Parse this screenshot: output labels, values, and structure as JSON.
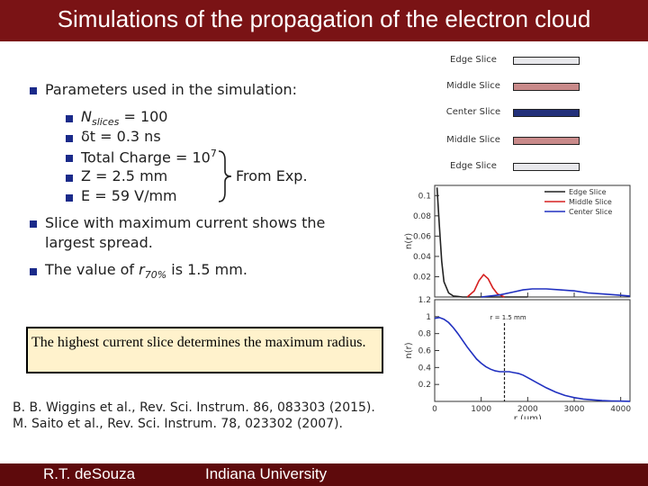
{
  "title": "Simulations of the propagation of the electron cloud",
  "bullets": {
    "main1": "Parameters used in the simulation:",
    "sub": [
      {
        "text": "N",
        "sub": "slices",
        "rest": " = 100"
      },
      {
        "text": "δt = 0.3 ns"
      },
      {
        "text": "Total Charge = 10",
        "sup": "7"
      },
      {
        "text": "Z = 2.5 mm"
      },
      {
        "text": "E = 59 V/mm"
      }
    ],
    "brace_label": "From Exp.",
    "main2_line1": "Slice with maximum current shows the",
    "main2_line2": "largest spread.",
    "main3_pre": "The value of ",
    "main3_var": "r",
    "main3_sub": "70%",
    "main3_post": " is 1.5 mm."
  },
  "callout": "The highest current slice determines the maximum radius.",
  "references": [
    "B. B. Wiggins et al., Rev. Sci. Instrum. 86, 083303 (2015).",
    "M. Saito et al., Rev. Sci. Instrum. 78, 023302 (2007)."
  ],
  "footer": {
    "author": "R.T. deSouza",
    "institution": "Indiana University"
  },
  "slice_legend": [
    {
      "label": "Edge Slice",
      "color": "#e8e8ec"
    },
    {
      "label": "Middle Slice",
      "color": "#c98a8a"
    },
    {
      "label": "Center Slice",
      "color": "#23307a"
    },
    {
      "label": "Middle Slice",
      "color": "#c98a8a"
    },
    {
      "label": "Edge Slice",
      "color": "#e8e8ec"
    }
  ],
  "colors": {
    "title_bar": "#7a1315",
    "footer_bar": "#5e0a0c",
    "bullet": "#1a2a8a",
    "edge": "#222222",
    "middle": "#d62020",
    "center": "#2030c0"
  },
  "chart_data": [
    {
      "type": "line",
      "ylabel": "n(r)",
      "xlim": [
        0,
        4200
      ],
      "ylim": [
        0,
        0.11
      ],
      "yticks": [
        "0.1",
        "0.08",
        "0.06",
        "0.04",
        "0.02"
      ],
      "legend": [
        "Edge Slice",
        "Middle Slice",
        "Center Slice"
      ],
      "series": [
        {
          "name": "Edge Slice",
          "x": [
            50,
            100,
            150,
            200,
            300,
            400,
            600,
            800,
            1200,
            2000
          ],
          "y": [
            0.108,
            0.07,
            0.035,
            0.015,
            0.004,
            0.001,
            0.0,
            0.0,
            0.0,
            0.0
          ]
        },
        {
          "name": "Middle Slice",
          "x": [
            700,
            850,
            950,
            1050,
            1150,
            1250,
            1350,
            1500
          ],
          "y": [
            0.0,
            0.006,
            0.016,
            0.022,
            0.018,
            0.009,
            0.003,
            0.0
          ]
        },
        {
          "name": "Center Slice",
          "x": [
            1000,
            1400,
            1700,
            1900,
            2100,
            2400,
            2700,
            3000,
            3300,
            3600,
            3900,
            4200
          ],
          "y": [
            0.0,
            0.002,
            0.005,
            0.007,
            0.008,
            0.008,
            0.007,
            0.006,
            0.004,
            0.003,
            0.002,
            0.001
          ]
        }
      ]
    },
    {
      "type": "line",
      "xlabel": "r (μm)",
      "ylabel": "n(r)",
      "xlim": [
        0,
        4200
      ],
      "ylim": [
        0,
        1.2
      ],
      "xticks": [
        "0",
        "1000",
        "2000",
        "3000",
        "4000"
      ],
      "yticks": [
        "1.2",
        "1",
        "0.8",
        "0.6",
        "0.4",
        "0.2"
      ],
      "annotation": "r = 1.5 mm",
      "marker_x": 1500,
      "series": [
        {
          "name": "",
          "x": [
            0,
            100,
            200,
            300,
            400,
            500,
            600,
            700,
            800,
            900,
            1000,
            1100,
            1200,
            1300,
            1400,
            1500,
            1600,
            1700,
            1800,
            1900,
            2000,
            2200,
            2400,
            2600,
            2800,
            3000,
            3200,
            3400,
            3600,
            3800,
            4000,
            4200
          ],
          "y": [
            0.98,
            0.99,
            0.97,
            0.93,
            0.87,
            0.8,
            0.72,
            0.64,
            0.57,
            0.5,
            0.45,
            0.41,
            0.38,
            0.36,
            0.35,
            0.35,
            0.35,
            0.34,
            0.33,
            0.31,
            0.28,
            0.22,
            0.16,
            0.11,
            0.07,
            0.045,
            0.028,
            0.018,
            0.01,
            0.005,
            0.003,
            0.001
          ]
        }
      ]
    }
  ]
}
